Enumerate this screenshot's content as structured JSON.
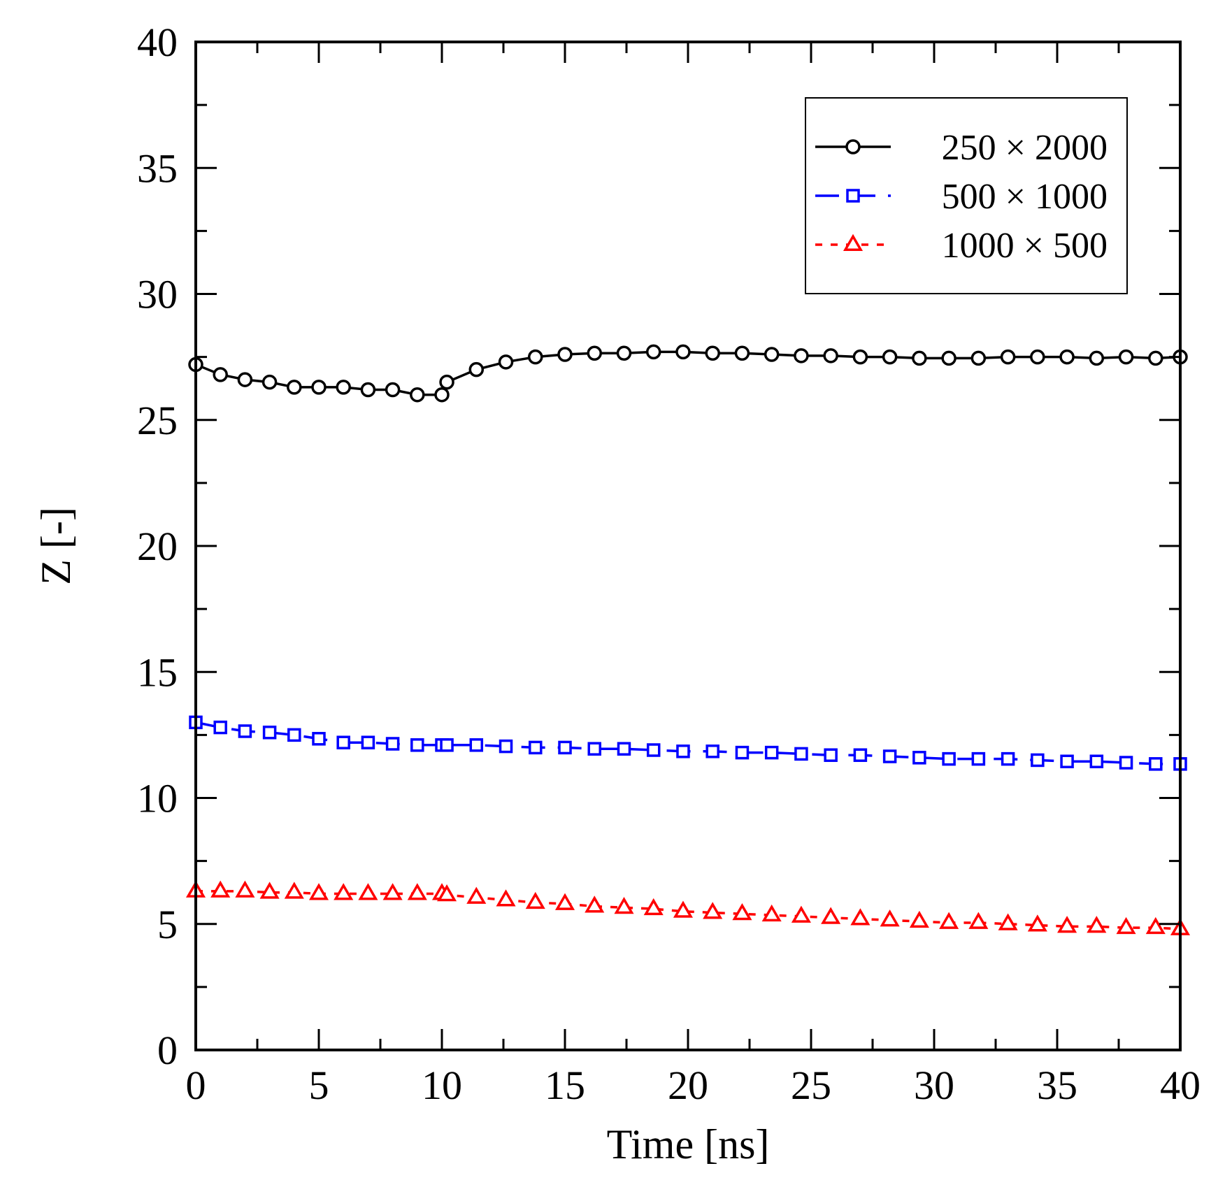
{
  "chart_data": {
    "type": "line",
    "title": "",
    "xlabel": "Time [ns]",
    "ylabel": "Z [-]",
    "xlim": [
      0,
      40
    ],
    "ylim": [
      0,
      40
    ],
    "x_ticks": [
      0,
      5,
      10,
      15,
      20,
      25,
      30,
      35,
      40
    ],
    "y_ticks": [
      0,
      5,
      10,
      15,
      20,
      25,
      30,
      35,
      40
    ],
    "grid": false,
    "legend_position": "top-right",
    "series": [
      {
        "name": "250 × 2000",
        "color": "#000000",
        "marker": "circle",
        "line_style": "solid",
        "x": [
          0,
          1,
          2,
          3,
          4,
          5,
          6,
          7,
          8,
          9,
          10,
          10.2,
          11.4,
          12.6,
          13.8,
          15,
          16.2,
          17.4,
          18.6,
          19.8,
          21,
          22.2,
          23.4,
          24.6,
          25.8,
          27,
          28.2,
          29.4,
          30.6,
          31.8,
          33,
          34.2,
          35.4,
          36.6,
          37.8,
          39,
          40
        ],
        "y": [
          27.2,
          26.8,
          26.6,
          26.5,
          26.3,
          26.3,
          26.3,
          26.2,
          26.2,
          26.0,
          26.0,
          26.5,
          27.0,
          27.3,
          27.5,
          27.6,
          27.65,
          27.65,
          27.7,
          27.7,
          27.65,
          27.65,
          27.6,
          27.55,
          27.55,
          27.5,
          27.5,
          27.45,
          27.45,
          27.45,
          27.5,
          27.5,
          27.5,
          27.45,
          27.5,
          27.45,
          27.5
        ]
      },
      {
        "name": "500 × 1000",
        "color": "#0000ff",
        "marker": "square",
        "line_style": "dashed",
        "x": [
          0,
          1,
          2,
          3,
          4,
          5,
          6,
          7,
          8,
          9,
          10,
          10.2,
          11.4,
          12.6,
          13.8,
          15,
          16.2,
          17.4,
          18.6,
          19.8,
          21,
          22.2,
          23.4,
          24.6,
          25.8,
          27,
          28.2,
          29.4,
          30.6,
          31.8,
          33,
          34.2,
          35.4,
          36.6,
          37.8,
          39,
          40
        ],
        "y": [
          13.0,
          12.8,
          12.65,
          12.6,
          12.5,
          12.35,
          12.2,
          12.2,
          12.15,
          12.1,
          12.1,
          12.1,
          12.1,
          12.05,
          12.0,
          12.0,
          11.95,
          11.95,
          11.9,
          11.85,
          11.85,
          11.8,
          11.8,
          11.75,
          11.7,
          11.7,
          11.65,
          11.6,
          11.55,
          11.55,
          11.55,
          11.5,
          11.45,
          11.45,
          11.4,
          11.35,
          11.35
        ]
      },
      {
        "name": "1000 × 500",
        "color": "#ff0000",
        "marker": "triangle",
        "line_style": "dotted",
        "x": [
          0,
          1,
          2,
          3,
          4,
          5,
          6,
          7,
          8,
          9,
          10,
          10.2,
          11.4,
          12.6,
          13.8,
          15,
          16.2,
          17.4,
          18.6,
          19.8,
          21,
          22.2,
          23.4,
          24.6,
          25.8,
          27,
          28.2,
          29.4,
          30.6,
          31.8,
          33,
          34.2,
          35.4,
          36.6,
          37.8,
          39,
          40
        ],
        "y": [
          6.3,
          6.3,
          6.3,
          6.25,
          6.25,
          6.2,
          6.2,
          6.2,
          6.2,
          6.2,
          6.2,
          6.15,
          6.05,
          5.95,
          5.85,
          5.8,
          5.7,
          5.65,
          5.6,
          5.5,
          5.45,
          5.4,
          5.35,
          5.3,
          5.25,
          5.2,
          5.15,
          5.1,
          5.05,
          5.05,
          5.0,
          4.95,
          4.9,
          4.9,
          4.85,
          4.85,
          4.8
        ]
      }
    ]
  }
}
